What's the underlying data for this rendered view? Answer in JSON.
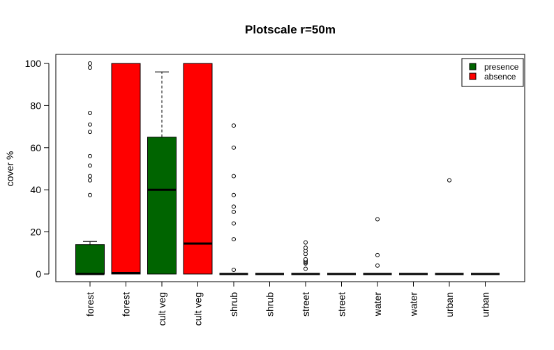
{
  "chart_data": {
    "type": "boxplot",
    "title": "Plotscale r=50m",
    "xlabel": "",
    "ylabel": "cover %",
    "ylim": [
      0,
      100
    ],
    "yticks": [
      0,
      20,
      40,
      60,
      80,
      100
    ],
    "legend": {
      "placement": "top-right",
      "entries": [
        {
          "label": "presence",
          "color": "#006400"
        },
        {
          "label": "absence",
          "color": "#ff0000"
        }
      ]
    },
    "categories": [
      "forest",
      "forest",
      "cult veg",
      "cult veg",
      "shrub",
      "shrub",
      "street",
      "street",
      "water",
      "water",
      "urban",
      "urban"
    ],
    "boxes": [
      {
        "group": "presence",
        "min": 0,
        "q1": 0,
        "median": 0,
        "q3": 14,
        "max": 15.5,
        "outliers": [
          37.5,
          44.5,
          46.5,
          51.5,
          56,
          67.5,
          71,
          76.5,
          98,
          100
        ]
      },
      {
        "group": "absence",
        "min": 0,
        "q1": 0,
        "median": 0.5,
        "q3": 100,
        "max": 100,
        "outliers": []
      },
      {
        "group": "presence",
        "min": 0,
        "q1": 0,
        "median": 40,
        "q3": 65,
        "max": 96,
        "outliers": []
      },
      {
        "group": "absence",
        "min": 0,
        "q1": 0,
        "median": 14.5,
        "q3": 100,
        "max": 100,
        "outliers": []
      },
      {
        "group": "presence",
        "min": 0,
        "q1": 0,
        "median": 0,
        "q3": 0,
        "max": 0,
        "outliers": [
          2,
          16.5,
          24,
          29.5,
          32,
          37.5,
          46.5,
          60,
          70.5
        ]
      },
      {
        "group": "absence",
        "min": 0,
        "q1": 0,
        "median": 0,
        "q3": 0,
        "max": 0,
        "outliers": []
      },
      {
        "group": "presence",
        "min": 0,
        "q1": 0,
        "median": 0,
        "q3": 0,
        "max": 0,
        "outliers": [
          2.5,
          5,
          5.5,
          6,
          6.5,
          7,
          9.5,
          11,
          12.5,
          15
        ]
      },
      {
        "group": "absence",
        "min": 0,
        "q1": 0,
        "median": 0,
        "q3": 0,
        "max": 0,
        "outliers": []
      },
      {
        "group": "presence",
        "min": 0,
        "q1": 0,
        "median": 0,
        "q3": 0,
        "max": 0,
        "outliers": [
          4,
          9,
          26
        ]
      },
      {
        "group": "absence",
        "min": 0,
        "q1": 0,
        "median": 0,
        "q3": 0,
        "max": 0,
        "outliers": []
      },
      {
        "group": "presence",
        "min": 0,
        "q1": 0,
        "median": 0,
        "q3": 0,
        "max": 0,
        "outliers": [
          44.5
        ]
      },
      {
        "group": "absence",
        "min": 0,
        "q1": 0,
        "median": 0,
        "q3": 0,
        "max": 0,
        "outliers": []
      }
    ]
  }
}
